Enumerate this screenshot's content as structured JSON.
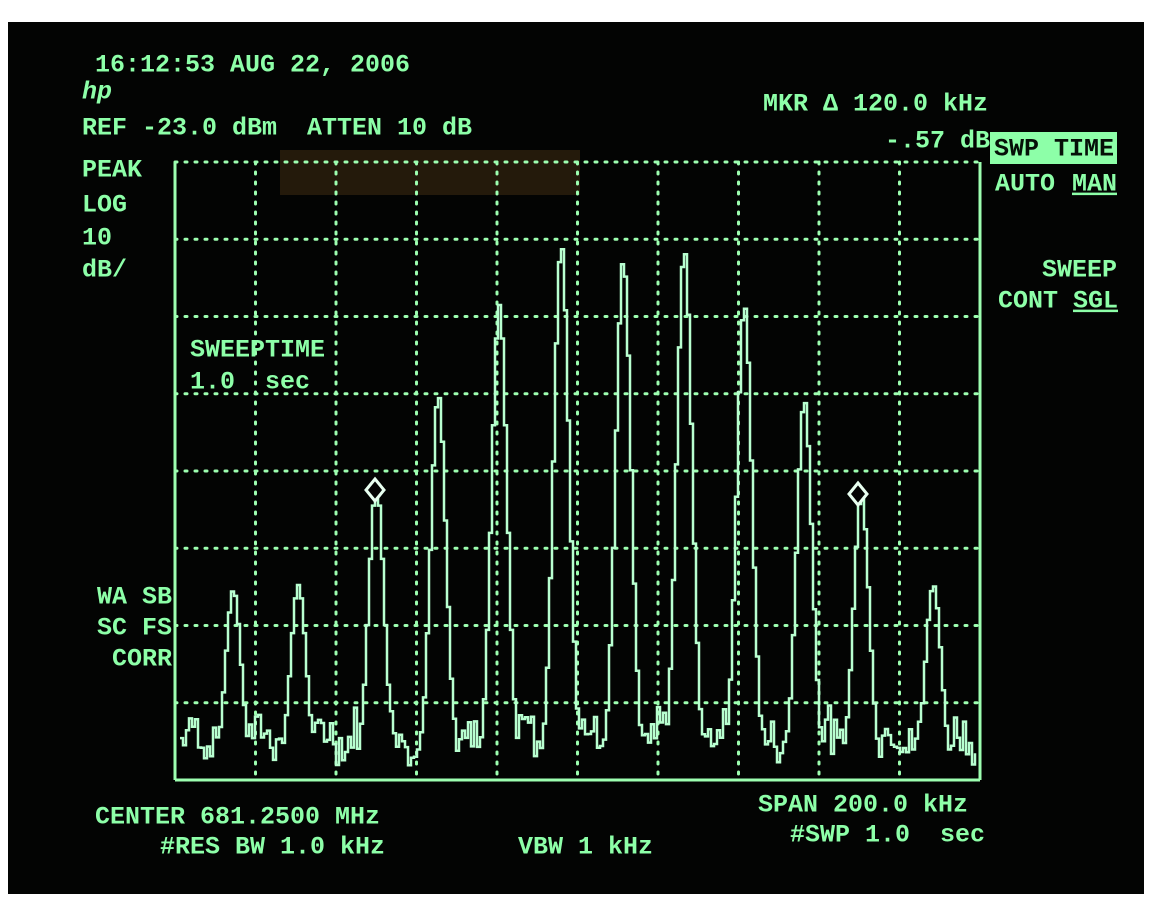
{
  "header": {
    "timestamp": "16:12:53 AUG 22, 2006",
    "reference": "REF -23.0 dBm  ATTEN 10 dB",
    "marker": "MKR Δ 120.0 kHz",
    "marker_level": "-.57 dB"
  },
  "left_panel": {
    "detector": "PEAK",
    "scale": "LOG",
    "scale_value": "10",
    "scale_unit": "dB/",
    "status": [
      "WA SB",
      "SC FS",
      "CORR"
    ]
  },
  "screen_note": {
    "label": "SWEEPTIME",
    "value": "1.0  sec"
  },
  "softkeys": {
    "sweep_time": {
      "title": "SWP TIME",
      "auto": "AUTO",
      "man": "MAN"
    },
    "sweep": {
      "title": "SWEEP",
      "cont": "CONT",
      "sgl": "SGL"
    }
  },
  "footer": {
    "center": "CENTER 681.2500 MHz",
    "res_bw": "#RES BW 1.0 kHz",
    "vbw": "VBW 1 kHz",
    "span": "SPAN 200.0 kHz",
    "sweep": "#SWP 1.0  sec"
  }
}
